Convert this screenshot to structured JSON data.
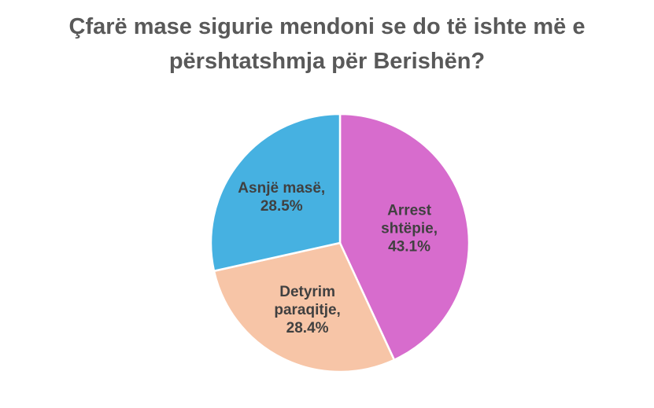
{
  "chart_data": {
    "type": "pie",
    "title_lines": [
      "Çfarë mase sigurie mendoni se do të ishte më e",
      "përshtatshmja për Berishën?"
    ],
    "slices": [
      {
        "label_lines": [
          "Arrest",
          "shtëpie,",
          "43.1%"
        ],
        "value": 43.1,
        "color": "#d76ccd"
      },
      {
        "label_lines": [
          "Detyrim",
          "paraqitje,",
          "28.4%"
        ],
        "value": 28.4,
        "color": "#f7c5a7"
      },
      {
        "label_lines": [
          "Asnjë masë,",
          "28.5%"
        ],
        "value": 28.5,
        "color": "#46b1e1"
      }
    ],
    "legend": "none"
  }
}
